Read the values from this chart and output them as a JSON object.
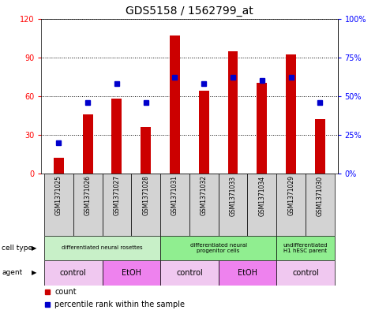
{
  "title": "GDS5158 / 1562799_at",
  "samples": [
    "GSM1371025",
    "GSM1371026",
    "GSM1371027",
    "GSM1371028",
    "GSM1371031",
    "GSM1371032",
    "GSM1371033",
    "GSM1371034",
    "GSM1371029",
    "GSM1371030"
  ],
  "counts": [
    12,
    46,
    58,
    36,
    107,
    64,
    95,
    70,
    92,
    42
  ],
  "percentiles": [
    20,
    46,
    58,
    46,
    62,
    58,
    62,
    60,
    62,
    46
  ],
  "ylim_left": [
    0,
    120
  ],
  "ylim_right": [
    0,
    100
  ],
  "yticks_left": [
    0,
    30,
    60,
    90,
    120
  ],
  "yticks_right": [
    0,
    25,
    50,
    75,
    100
  ],
  "yticklabels_left": [
    "0",
    "30",
    "60",
    "90",
    "120"
  ],
  "yticklabels_right": [
    "0%",
    "25%",
    "50%",
    "75%",
    "100%"
  ],
  "bar_color": "#cc0000",
  "square_color": "#0000cc",
  "cell_type_groups": [
    {
      "label": "differentiated neural rosettes",
      "start": 0,
      "end": 4,
      "color": "#c8f0c8"
    },
    {
      "label": "differentiated neural\nprogenitor cells",
      "start": 4,
      "end": 8,
      "color": "#90ee90"
    },
    {
      "label": "undifferentiated\nH1 hESC parent",
      "start": 8,
      "end": 10,
      "color": "#90ee90"
    }
  ],
  "agent_groups": [
    {
      "label": "control",
      "start": 0,
      "end": 2,
      "color": "#f0c8f0"
    },
    {
      "label": "EtOH",
      "start": 2,
      "end": 4,
      "color": "#ee82ee"
    },
    {
      "label": "control",
      "start": 4,
      "end": 6,
      "color": "#f0c8f0"
    },
    {
      "label": "EtOH",
      "start": 6,
      "end": 8,
      "color": "#ee82ee"
    },
    {
      "label": "control",
      "start": 8,
      "end": 10,
      "color": "#f0c8f0"
    }
  ],
  "cell_type_label": "cell type",
  "agent_label": "agent",
  "legend_count_label": "count",
  "legend_percentile_label": "percentile rank within the sample",
  "sample_bg_color": "#d3d3d3",
  "grid_color": "#000000",
  "background_color": "#ffffff",
  "bar_width": 0.35
}
